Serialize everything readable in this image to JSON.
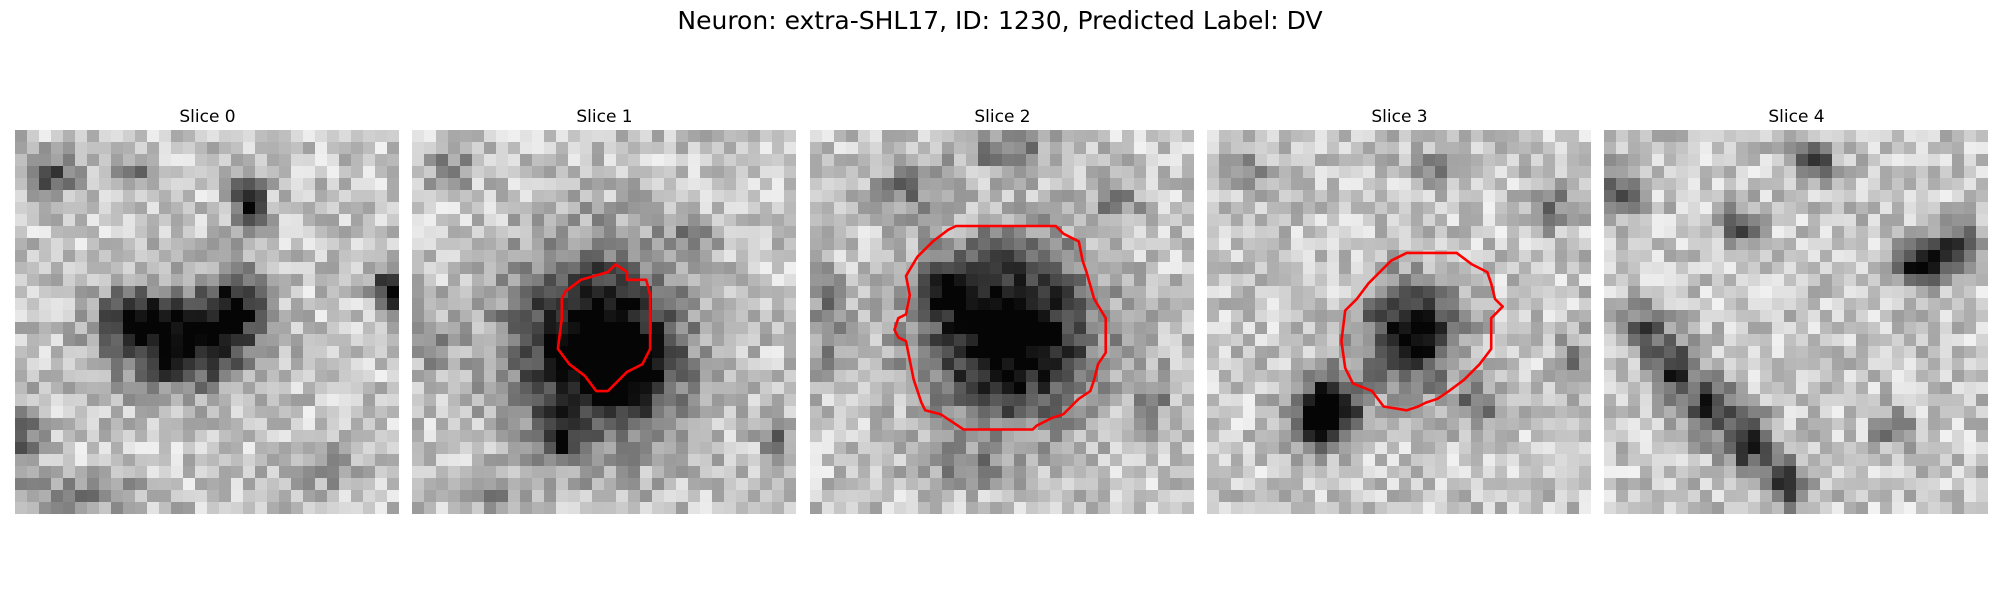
{
  "figure": {
    "title": "Neuron: extra-SHL17, ID: 1230, Predicted Label: DV",
    "contour_color": "#ff0000"
  },
  "slices": [
    {
      "title": "Slice 0",
      "seed": 11,
      "blobs": [
        [
          0.43,
          0.55,
          0.17,
          0.12,
          0.85
        ],
        [
          0.58,
          0.45,
          0.07,
          0.09,
          0.6
        ],
        [
          0.3,
          0.48,
          0.07,
          0.06,
          0.5
        ],
        [
          0.61,
          0.2,
          0.04,
          0.08,
          0.75
        ],
        [
          0.1,
          0.12,
          0.05,
          0.05,
          0.55
        ],
        [
          0.98,
          0.42,
          0.04,
          0.06,
          0.9
        ],
        [
          0.3,
          0.12,
          0.09,
          0.04,
          0.3
        ],
        [
          0.02,
          0.8,
          0.05,
          0.1,
          0.35
        ],
        [
          0.8,
          0.88,
          0.12,
          0.06,
          0.2
        ],
        [
          0.2,
          0.95,
          0.15,
          0.05,
          0.25
        ]
      ],
      "contour": []
    },
    {
      "title": "Slice 1",
      "seed": 23,
      "blobs": [
        [
          0.48,
          0.56,
          0.22,
          0.24,
          0.9
        ],
        [
          0.38,
          0.8,
          0.05,
          0.06,
          0.55
        ],
        [
          0.55,
          0.62,
          0.1,
          0.1,
          0.4
        ],
        [
          0.1,
          0.1,
          0.06,
          0.05,
          0.3
        ],
        [
          0.2,
          0.95,
          0.1,
          0.04,
          0.3
        ],
        [
          0.95,
          0.8,
          0.04,
          0.06,
          0.4
        ],
        [
          0.72,
          0.28,
          0.06,
          0.05,
          0.25
        ],
        [
          0.05,
          0.55,
          0.04,
          0.08,
          0.25
        ]
      ],
      "contour": [
        [
          0.4,
          0.42
        ],
        [
          0.44,
          0.39
        ],
        [
          0.51,
          0.37
        ],
        [
          0.53,
          0.35
        ],
        [
          0.56,
          0.37
        ],
        [
          0.56,
          0.39
        ],
        [
          0.61,
          0.39
        ],
        [
          0.62,
          0.43
        ],
        [
          0.62,
          0.57
        ],
        [
          0.6,
          0.61
        ],
        [
          0.56,
          0.63
        ],
        [
          0.53,
          0.66
        ],
        [
          0.51,
          0.68
        ],
        [
          0.48,
          0.68
        ],
        [
          0.45,
          0.64
        ],
        [
          0.41,
          0.61
        ],
        [
          0.38,
          0.57
        ],
        [
          0.39,
          0.49
        ],
        [
          0.39,
          0.44
        ]
      ]
    },
    {
      "title": "Slice 2",
      "seed": 37,
      "blobs": [
        [
          0.52,
          0.53,
          0.21,
          0.22,
          0.95
        ],
        [
          0.36,
          0.42,
          0.06,
          0.06,
          0.6
        ],
        [
          0.5,
          0.05,
          0.12,
          0.05,
          0.35
        ],
        [
          0.25,
          0.15,
          0.08,
          0.07,
          0.35
        ],
        [
          0.8,
          0.18,
          0.06,
          0.06,
          0.3
        ],
        [
          0.05,
          0.5,
          0.05,
          0.12,
          0.35
        ],
        [
          0.9,
          0.7,
          0.05,
          0.08,
          0.25
        ],
        [
          0.4,
          0.88,
          0.1,
          0.05,
          0.25
        ]
      ],
      "contour": [
        [
          0.25,
          0.38
        ],
        [
          0.28,
          0.33
        ],
        [
          0.32,
          0.29
        ],
        [
          0.36,
          0.26
        ],
        [
          0.38,
          0.25
        ],
        [
          0.64,
          0.25
        ],
        [
          0.66,
          0.27
        ],
        [
          0.7,
          0.29
        ],
        [
          0.71,
          0.34
        ],
        [
          0.72,
          0.37
        ],
        [
          0.74,
          0.44
        ],
        [
          0.77,
          0.49
        ],
        [
          0.77,
          0.58
        ],
        [
          0.75,
          0.61
        ],
        [
          0.74,
          0.65
        ],
        [
          0.73,
          0.68
        ],
        [
          0.7,
          0.7
        ],
        [
          0.68,
          0.72
        ],
        [
          0.66,
          0.74
        ],
        [
          0.63,
          0.75
        ],
        [
          0.59,
          0.77
        ],
        [
          0.58,
          0.78
        ],
        [
          0.4,
          0.78
        ],
        [
          0.37,
          0.76
        ],
        [
          0.34,
          0.74
        ],
        [
          0.3,
          0.73
        ],
        [
          0.29,
          0.71
        ],
        [
          0.27,
          0.65
        ],
        [
          0.26,
          0.6
        ],
        [
          0.25,
          0.55
        ],
        [
          0.23,
          0.54
        ],
        [
          0.22,
          0.52
        ],
        [
          0.23,
          0.49
        ],
        [
          0.25,
          0.48
        ],
        [
          0.26,
          0.43
        ]
      ]
    },
    {
      "title": "Slice 3",
      "seed": 53,
      "blobs": [
        [
          0.53,
          0.53,
          0.12,
          0.13,
          0.8
        ],
        [
          0.32,
          0.72,
          0.08,
          0.08,
          0.9
        ],
        [
          0.28,
          0.78,
          0.06,
          0.05,
          0.6
        ],
        [
          0.7,
          0.72,
          0.06,
          0.05,
          0.35
        ],
        [
          0.9,
          0.2,
          0.06,
          0.06,
          0.3
        ],
        [
          0.1,
          0.1,
          0.06,
          0.06,
          0.25
        ],
        [
          0.6,
          0.1,
          0.08,
          0.04,
          0.25
        ],
        [
          0.95,
          0.6,
          0.04,
          0.08,
          0.3
        ]
      ],
      "contour": [
        [
          0.36,
          0.47
        ],
        [
          0.39,
          0.44
        ],
        [
          0.42,
          0.4
        ],
        [
          0.45,
          0.37
        ],
        [
          0.48,
          0.34
        ],
        [
          0.52,
          0.32
        ],
        [
          0.65,
          0.32
        ],
        [
          0.69,
          0.35
        ],
        [
          0.73,
          0.37
        ],
        [
          0.74,
          0.4
        ],
        [
          0.75,
          0.44
        ],
        [
          0.77,
          0.46
        ],
        [
          0.74,
          0.49
        ],
        [
          0.74,
          0.57
        ],
        [
          0.71,
          0.61
        ],
        [
          0.67,
          0.65
        ],
        [
          0.63,
          0.68
        ],
        [
          0.6,
          0.7
        ],
        [
          0.57,
          0.71
        ],
        [
          0.55,
          0.72
        ],
        [
          0.52,
          0.73
        ],
        [
          0.46,
          0.72
        ],
        [
          0.43,
          0.68
        ],
        [
          0.38,
          0.66
        ],
        [
          0.36,
          0.62
        ],
        [
          0.35,
          0.55
        ]
      ]
    },
    {
      "title": "Slice 4",
      "seed": 71,
      "blobs": [
        [
          0.18,
          0.62,
          0.06,
          0.08,
          0.6
        ],
        [
          0.28,
          0.72,
          0.06,
          0.08,
          0.6
        ],
        [
          0.38,
          0.82,
          0.06,
          0.08,
          0.6
        ],
        [
          0.48,
          0.92,
          0.06,
          0.06,
          0.55
        ],
        [
          0.1,
          0.52,
          0.05,
          0.06,
          0.5
        ],
        [
          0.55,
          0.08,
          0.05,
          0.05,
          0.55
        ],
        [
          0.35,
          0.25,
          0.05,
          0.05,
          0.45
        ],
        [
          0.83,
          0.35,
          0.07,
          0.05,
          0.75
        ],
        [
          0.92,
          0.3,
          0.05,
          0.06,
          0.55
        ],
        [
          0.05,
          0.15,
          0.05,
          0.06,
          0.45
        ],
        [
          0.75,
          0.78,
          0.05,
          0.05,
          0.35
        ]
      ],
      "contour": []
    }
  ]
}
